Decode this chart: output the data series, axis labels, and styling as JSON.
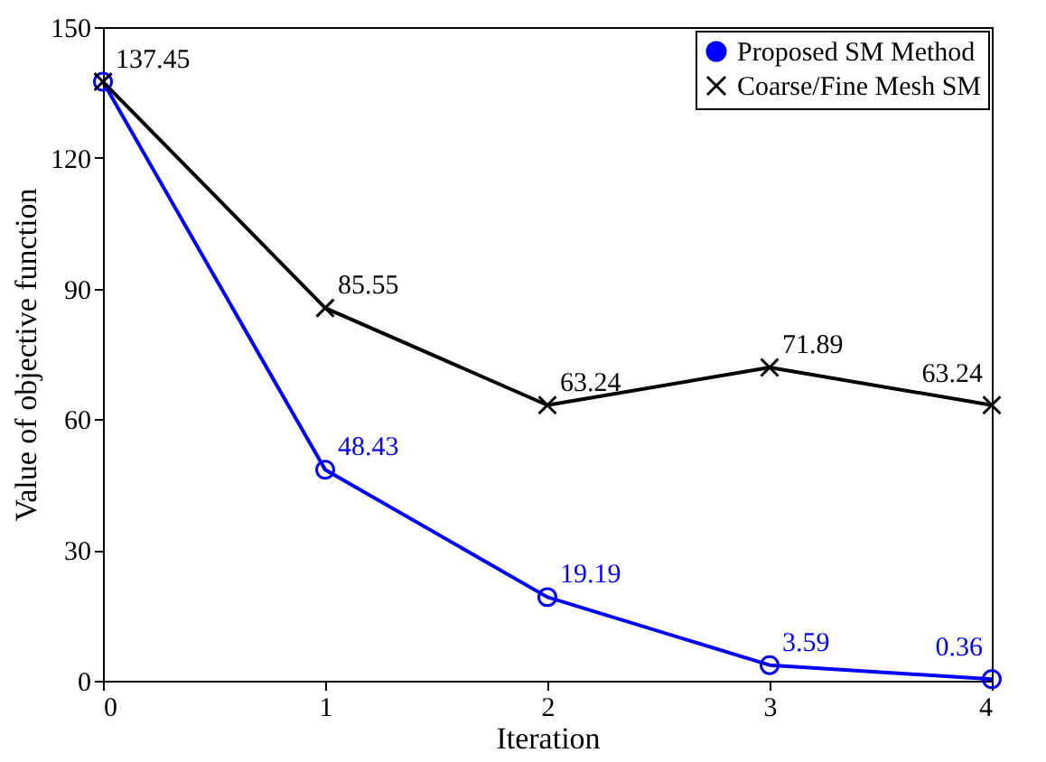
{
  "chart_data": {
    "type": "line",
    "xlabel": "Iteration",
    "ylabel": "Value of objective function",
    "x": [
      0,
      1,
      2,
      3,
      4
    ],
    "xlim": [
      0,
      4
    ],
    "xticks": [
      0,
      1,
      2,
      3,
      4
    ],
    "ylim": [
      0,
      150
    ],
    "yticks": [
      0,
      30,
      60,
      90,
      120,
      150
    ],
    "grid": false,
    "legend": "top right",
    "line_style": "solid",
    "series": [
      {
        "name": "Proposed SM Method",
        "color": "#0000ff",
        "marker": "circle",
        "values": [
          137.45,
          48.43,
          19.19,
          3.59,
          0.36
        ],
        "value_labels": [
          null,
          "48.43",
          "19.19",
          "3.59",
          "0.36"
        ]
      },
      {
        "name": "Coarse/Fine Mesh SM",
        "color": "#000000",
        "marker": "cross",
        "values": [
          137.45,
          85.55,
          63.24,
          71.89,
          63.24
        ],
        "value_labels": [
          "137.45",
          "85.55",
          "63.24",
          "71.89",
          "63.24"
        ]
      }
    ]
  }
}
